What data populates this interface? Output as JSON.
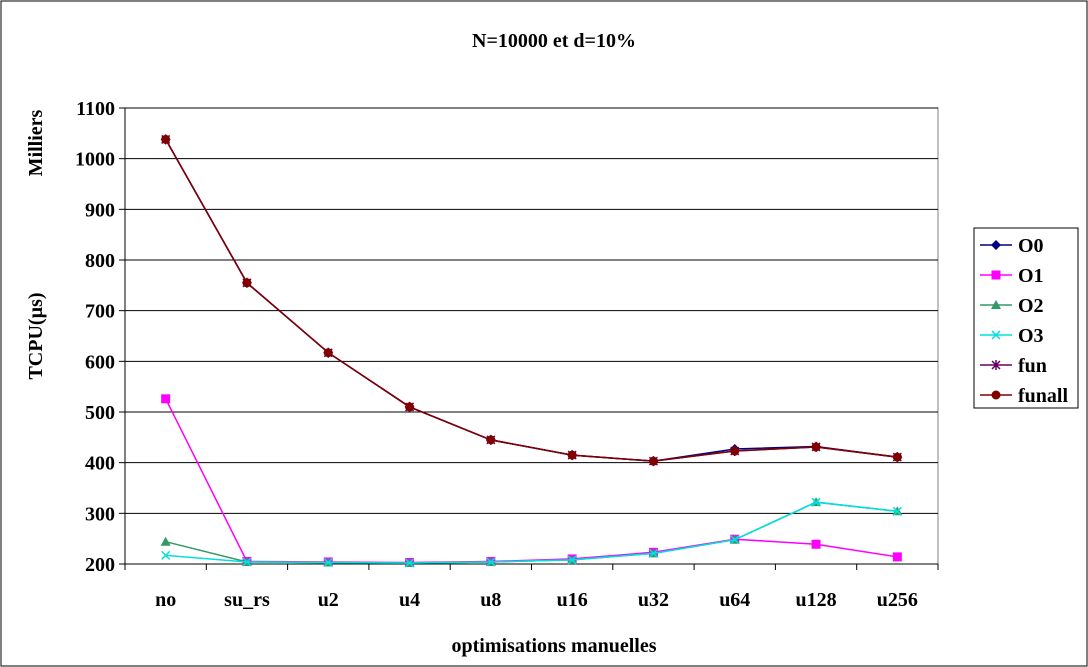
{
  "chart_data": {
    "type": "line",
    "title": "N=10000 et d=10%",
    "xlabel": "optimisations manuelles",
    "ylabel": "TCPU(µs)",
    "yunit_label": "Milliers",
    "categories": [
      "no",
      "su_rs",
      "u2",
      "u4",
      "u8",
      "u16",
      "u32",
      "u64",
      "u128",
      "u256"
    ],
    "ylim": [
      200,
      1100
    ],
    "yticks": [
      200,
      300,
      400,
      500,
      600,
      700,
      800,
      900,
      1000,
      1100
    ],
    "grid": true,
    "legend_position": "right",
    "series": [
      {
        "name": "O0",
        "color": "#000080",
        "marker": "diamond",
        "values": [
          1038,
          755,
          617,
          510,
          445,
          415,
          403,
          427,
          432,
          411
        ]
      },
      {
        "name": "O1",
        "color": "#ff00ff",
        "marker": "square",
        "values": [
          526,
          205,
          204,
          203,
          205,
          210,
          223,
          249,
          239,
          214
        ]
      },
      {
        "name": "O2",
        "color": "#339966",
        "marker": "triangle",
        "values": [
          244,
          204,
          203,
          202,
          204,
          208,
          221,
          248,
          322,
          304
        ]
      },
      {
        "name": "O3",
        "color": "#00e0e0",
        "marker": "x",
        "values": [
          217,
          204,
          203,
          202,
          204,
          208,
          221,
          248,
          322,
          304
        ]
      },
      {
        "name": "fun",
        "color": "#660066",
        "marker": "star",
        "values": [
          1038,
          755,
          617,
          510,
          445,
          415,
          403,
          423,
          431,
          411
        ]
      },
      {
        "name": "funall",
        "color": "#800000",
        "marker": "circle",
        "values": [
          1038,
          755,
          617,
          510,
          445,
          415,
          403,
          423,
          431,
          411
        ]
      }
    ]
  }
}
